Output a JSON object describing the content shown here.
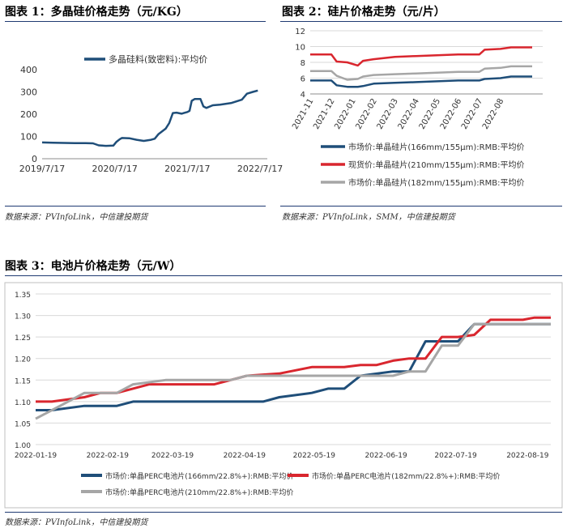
{
  "titles": {
    "fig1": "图表 1：多晶硅价格走势（元/KG）",
    "fig2": "图表 2：硅片价格走势（元/片）",
    "fig3": "图表 3：电池片价格走势（元/W）"
  },
  "sources": {
    "fig1": "数据来源：PVInfoLink，中信建投期货",
    "fig2": "数据来源：PVInfoLink，SMM，中信建投期货",
    "fig3": "数据来源：PVInfoLink，中信建投期货"
  },
  "chart_data": [
    {
      "id": "polysilicon",
      "type": "line",
      "title": "多晶硅价格走势（元/KG）",
      "xlabel": "",
      "ylabel": "",
      "x_range": [
        0,
        3.1
      ],
      "x_ticks": [
        {
          "x": 0,
          "label": "2019/7/17"
        },
        {
          "x": 1,
          "label": "2020/7/17"
        },
        {
          "x": 2,
          "label": "2021/7/17"
        },
        {
          "x": 3,
          "label": "2022/7/17"
        }
      ],
      "ylim": [
        0,
        400
      ],
      "y_ticks": [
        0,
        100,
        200,
        300,
        400
      ],
      "series": [
        {
          "name": "多晶硅料(致密料):平均价",
          "color": "#1f4e79",
          "points": [
            [
              0,
              73
            ],
            [
              0.15,
              72
            ],
            [
              0.3,
              71
            ],
            [
              0.45,
              70
            ],
            [
              0.6,
              70
            ],
            [
              0.7,
              69
            ],
            [
              0.78,
              60
            ],
            [
              0.88,
              58
            ],
            [
              0.98,
              59
            ],
            [
              1.02,
              75
            ],
            [
              1.07,
              88
            ],
            [
              1.1,
              93
            ],
            [
              1.2,
              92
            ],
            [
              1.3,
              85
            ],
            [
              1.4,
              80
            ],
            [
              1.5,
              85
            ],
            [
              1.55,
              90
            ],
            [
              1.6,
              110
            ],
            [
              1.7,
              135
            ],
            [
              1.75,
              160
            ],
            [
              1.8,
              205
            ],
            [
              1.85,
              207
            ],
            [
              1.92,
              202
            ],
            [
              1.95,
              205
            ],
            [
              2.0,
              210
            ],
            [
              2.03,
              215
            ],
            [
              2.06,
              260
            ],
            [
              2.1,
              268
            ],
            [
              2.18,
              268
            ],
            [
              2.22,
              235
            ],
            [
              2.26,
              228
            ],
            [
              2.35,
              240
            ],
            [
              2.45,
              243
            ],
            [
              2.6,
              250
            ],
            [
              2.75,
              265
            ],
            [
              2.82,
              292
            ],
            [
              2.9,
              300
            ],
            [
              2.97,
              306
            ]
          ]
        }
      ]
    },
    {
      "id": "wafer",
      "type": "line",
      "title": "硅片价格走势（元/片）",
      "xlabel": "",
      "ylabel": "",
      "x_range": [
        0,
        22
      ],
      "x_ticks": [
        {
          "x": 0,
          "label": "2021-11"
        },
        {
          "x": 2,
          "label": "2021-12"
        },
        {
          "x": 4,
          "label": "2022-01"
        },
        {
          "x": 6,
          "label": "2022-02"
        },
        {
          "x": 8,
          "label": "2022-03"
        },
        {
          "x": 10,
          "label": "2022-04"
        },
        {
          "x": 12,
          "label": "2022-05"
        },
        {
          "x": 14,
          "label": "2022-06"
        },
        {
          "x": 16,
          "label": "2022-07"
        },
        {
          "x": 18,
          "label": "2022-08"
        }
      ],
      "ylim": [
        4,
        12
      ],
      "y_ticks": [
        4,
        6,
        8,
        10,
        12
      ],
      "series": [
        {
          "name": "市场价:单晶硅片(166mm/155μm):RMB:平均价",
          "color": "#1f4e79",
          "points": [
            [
              0,
              5.7
            ],
            [
              2,
              5.7
            ],
            [
              2.5,
              5.1
            ],
            [
              3.5,
              4.9
            ],
            [
              4.5,
              4.9
            ],
            [
              5,
              5.0
            ],
            [
              6,
              5.3
            ],
            [
              8,
              5.4
            ],
            [
              10,
              5.5
            ],
            [
              12,
              5.6
            ],
            [
              14,
              5.7
            ],
            [
              16,
              5.7
            ],
            [
              16.5,
              5.9
            ],
            [
              18,
              6.0
            ],
            [
              19,
              6.2
            ],
            [
              21,
              6.2
            ]
          ]
        },
        {
          "name": "现货价:单晶硅片(210mm/155μm):RMB:平均价",
          "color": "#d9262e",
          "points": [
            [
              0,
              9.0
            ],
            [
              2,
              9.0
            ],
            [
              2.5,
              8.1
            ],
            [
              3.5,
              8.0
            ],
            [
              4.5,
              7.6
            ],
            [
              5,
              8.2
            ],
            [
              6,
              8.4
            ],
            [
              8,
              8.7
            ],
            [
              10,
              8.8
            ],
            [
              12,
              8.9
            ],
            [
              14,
              9.0
            ],
            [
              16,
              9.0
            ],
            [
              16.5,
              9.6
            ],
            [
              18,
              9.7
            ],
            [
              19,
              9.9
            ],
            [
              21,
              9.9
            ]
          ]
        },
        {
          "name": "市场价:单晶硅片(182mm/155μm):RMB:平均价",
          "color": "#a6a6a6",
          "points": [
            [
              0,
              6.9
            ],
            [
              2,
              6.9
            ],
            [
              2.5,
              6.3
            ],
            [
              3.5,
              5.8
            ],
            [
              4.5,
              5.9
            ],
            [
              5,
              6.2
            ],
            [
              6,
              6.4
            ],
            [
              8,
              6.5
            ],
            [
              10,
              6.6
            ],
            [
              12,
              6.7
            ],
            [
              14,
              6.8
            ],
            [
              16,
              6.8
            ],
            [
              16.5,
              7.2
            ],
            [
              18,
              7.3
            ],
            [
              19,
              7.5
            ],
            [
              21,
              7.5
            ]
          ]
        }
      ]
    },
    {
      "id": "cell",
      "type": "line",
      "title": "电池片价格走势（元/W）",
      "xlabel": "",
      "ylabel": "",
      "x_range": [
        0,
        222
      ],
      "x_ticks": [
        {
          "x": 0,
          "label": "2022-01-19"
        },
        {
          "x": 31,
          "label": "2022-02-19"
        },
        {
          "x": 59,
          "label": "2022-03-19"
        },
        {
          "x": 90,
          "label": "2022-04-19"
        },
        {
          "x": 120,
          "label": "2022-05-19"
        },
        {
          "x": 151,
          "label": "2022-06-19"
        },
        {
          "x": 181,
          "label": "2022-07-19"
        },
        {
          "x": 212,
          "label": "2022-08-19"
        }
      ],
      "ylim": [
        1.0,
        1.35
      ],
      "y_ticks": [
        1.0,
        1.05,
        1.1,
        1.15,
        1.2,
        1.25,
        1.3,
        1.35
      ],
      "y_decimals": 2,
      "series": [
        {
          "name": "市场价:单晶PERC电池片(166mm/22.8%+):RMB:平均价",
          "color": "#1f4e79",
          "points": [
            [
              0,
              1.08
            ],
            [
              7,
              1.08
            ],
            [
              21,
              1.09
            ],
            [
              35,
              1.09
            ],
            [
              42,
              1.1
            ],
            [
              98,
              1.1
            ],
            [
              105,
              1.11
            ],
            [
              119,
              1.12
            ],
            [
              126,
              1.13
            ],
            [
              133,
              1.13
            ],
            [
              140,
              1.16
            ],
            [
              154,
              1.17
            ],
            [
              161,
              1.17
            ],
            [
              168,
              1.24
            ],
            [
              182,
              1.24
            ],
            [
              189,
              1.28
            ],
            [
              222,
              1.28
            ]
          ]
        },
        {
          "name": "市场价:单晶PERC电池片(182mm/22.8%+):RMB:平均价",
          "color": "#d9262e",
          "points": [
            [
              0,
              1.1
            ],
            [
              7,
              1.1
            ],
            [
              21,
              1.11
            ],
            [
              28,
              1.12
            ],
            [
              35,
              1.12
            ],
            [
              49,
              1.14
            ],
            [
              77,
              1.14
            ],
            [
              91,
              1.16
            ],
            [
              105,
              1.165
            ],
            [
              119,
              1.18
            ],
            [
              133,
              1.18
            ],
            [
              140,
              1.185
            ],
            [
              147,
              1.185
            ],
            [
              154,
              1.195
            ],
            [
              161,
              1.2
            ],
            [
              168,
              1.2
            ],
            [
              175,
              1.25
            ],
            [
              182,
              1.25
            ],
            [
              189,
              1.255
            ],
            [
              196,
              1.29
            ],
            [
              210,
              1.29
            ],
            [
              215,
              1.295
            ],
            [
              222,
              1.295
            ]
          ]
        },
        {
          "name": "市场价:单晶PERC电池片(210mm/22.8%+):RMB:平均价",
          "color": "#a6a6a6",
          "points": [
            [
              0,
              1.06
            ],
            [
              7,
              1.08
            ],
            [
              14,
              1.1
            ],
            [
              21,
              1.12
            ],
            [
              35,
              1.12
            ],
            [
              42,
              1.14
            ],
            [
              56,
              1.15
            ],
            [
              84,
              1.15
            ],
            [
              91,
              1.16
            ],
            [
              98,
              1.16
            ],
            [
              154,
              1.16
            ],
            [
              161,
              1.17
            ],
            [
              168,
              1.17
            ],
            [
              175,
              1.23
            ],
            [
              182,
              1.23
            ],
            [
              189,
              1.28
            ],
            [
              222,
              1.28
            ]
          ]
        }
      ]
    }
  ]
}
